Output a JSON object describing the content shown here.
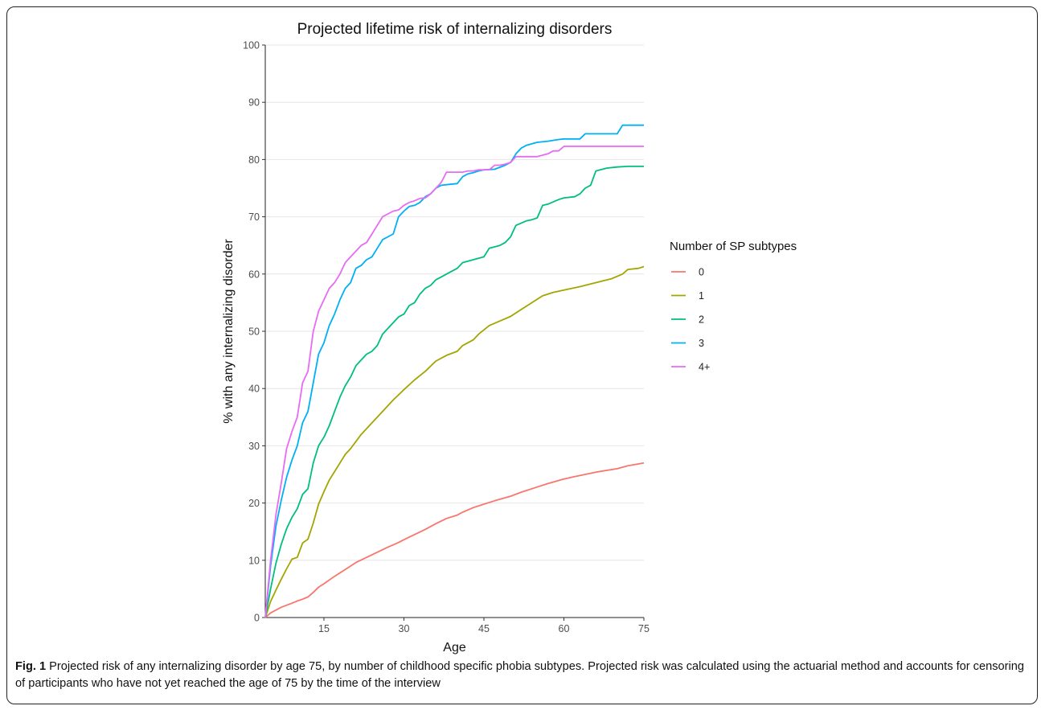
{
  "figure": {
    "caption_label": "Fig. 1",
    "caption_text": "Projected risk of any internalizing disorder by age 75, by number of childhood specific phobia subtypes. Projected risk was calculated using the actuarial method and accounts for censoring of participants who have not yet reached the age of 75 by the time of the interview"
  },
  "chart_data": {
    "type": "line",
    "title": "Projected lifetime risk of internalizing disorders",
    "xlabel": "Age",
    "ylabel": "% with any internalizing disorder",
    "xlim": [
      4,
      75
    ],
    "ylim": [
      0,
      100
    ],
    "x_ticks": [
      15,
      30,
      45,
      60,
      75
    ],
    "y_ticks": [
      0,
      10,
      20,
      30,
      40,
      50,
      60,
      70,
      80,
      90,
      100
    ],
    "grid": true,
    "legend_title": "Number of SP subtypes",
    "legend_position": "right",
    "series": [
      {
        "name": "0",
        "color": "#F8766D",
        "x": [
          4,
          5,
          7,
          9,
          10,
          11,
          12,
          13,
          14,
          15,
          17,
          19,
          21,
          23,
          25,
          27,
          29,
          30,
          32,
          34,
          36,
          38,
          40,
          41,
          43,
          45,
          47,
          50,
          52,
          55,
          57,
          60,
          62,
          64,
          66,
          68,
          70,
          72,
          75
        ],
        "y": [
          0,
          0.8,
          1.8,
          2.5,
          2.9,
          3.2,
          3.6,
          4.4,
          5.3,
          5.9,
          7.2,
          8.4,
          9.6,
          10.5,
          11.4,
          12.3,
          13.1,
          13.6,
          14.5,
          15.4,
          16.4,
          17.3,
          17.9,
          18.4,
          19.2,
          19.8,
          20.4,
          21.2,
          21.9,
          22.8,
          23.4,
          24.2,
          24.6,
          25.0,
          25.4,
          25.7,
          26.0,
          26.5,
          27.0
        ]
      },
      {
        "name": "1",
        "color": "#A3A500",
        "x": [
          4,
          5,
          6,
          7,
          8,
          9,
          10,
          11,
          12,
          13,
          14,
          15,
          16,
          18,
          19,
          20,
          22,
          24,
          26,
          28,
          30,
          32,
          34,
          36,
          38,
          40,
          41,
          43,
          44,
          46,
          48,
          50,
          52,
          54,
          56,
          58,
          60,
          63,
          66,
          69,
          71,
          72,
          74,
          75
        ],
        "y": [
          0,
          2.8,
          4.8,
          6.7,
          8.5,
          10.2,
          10.5,
          13.0,
          13.7,
          16.5,
          19.8,
          22.0,
          24.0,
          27.0,
          28.5,
          29.5,
          32.0,
          34.0,
          36.0,
          38.0,
          39.8,
          41.5,
          43.0,
          44.8,
          45.8,
          46.5,
          47.5,
          48.5,
          49.5,
          51.0,
          51.8,
          52.6,
          53.8,
          55.0,
          56.2,
          56.8,
          57.2,
          57.8,
          58.5,
          59.2,
          60.0,
          60.8,
          61.0,
          61.3
        ]
      },
      {
        "name": "2",
        "color": "#00BF7D",
        "x": [
          4,
          5,
          6,
          7,
          8,
          9,
          10,
          11,
          12,
          13,
          14,
          15,
          16,
          17,
          18,
          19,
          20,
          21,
          22,
          23,
          24,
          25,
          26,
          27,
          28,
          29,
          30,
          31,
          32,
          33,
          34,
          35,
          36,
          37,
          38,
          40,
          41,
          43,
          45,
          46,
          48,
          49,
          50,
          51,
          53,
          54,
          55,
          56,
          57,
          59,
          60,
          62,
          63,
          64,
          65,
          66,
          68,
          70,
          72,
          75
        ],
        "y": [
          0,
          5.0,
          9.5,
          12.8,
          15.5,
          17.5,
          19.0,
          21.5,
          22.5,
          27.0,
          30.0,
          31.5,
          33.5,
          36.0,
          38.5,
          40.5,
          42.0,
          44.0,
          45.0,
          46.0,
          46.5,
          47.5,
          49.5,
          50.5,
          51.5,
          52.5,
          53.0,
          54.5,
          55.0,
          56.5,
          57.5,
          58.0,
          59.0,
          59.5,
          60.0,
          61.0,
          62.0,
          62.5,
          63.0,
          64.5,
          65.0,
          65.5,
          66.5,
          68.5,
          69.3,
          69.5,
          69.8,
          72.0,
          72.2,
          73.0,
          73.3,
          73.5,
          74.0,
          75.0,
          75.5,
          78.0,
          78.5,
          78.7,
          78.8,
          78.8
        ]
      },
      {
        "name": "3",
        "color": "#00B0F6",
        "x": [
          4,
          5,
          6,
          7,
          8,
          9,
          10,
          11,
          12,
          13,
          14,
          15,
          16,
          17,
          18,
          19,
          20,
          21,
          22,
          23,
          24,
          25,
          26,
          27,
          28,
          29,
          30,
          31,
          32,
          33,
          34,
          35,
          36,
          37,
          38,
          40,
          41,
          42,
          43,
          44,
          45,
          47,
          49,
          50,
          51,
          52,
          53,
          55,
          57,
          59,
          60,
          63,
          64,
          66,
          68,
          70,
          71,
          72,
          75
        ],
        "y": [
          0,
          9.0,
          16.0,
          20.5,
          24.5,
          27.5,
          30.0,
          34.0,
          36.0,
          41.0,
          46.0,
          48.0,
          51.0,
          53.0,
          55.5,
          57.5,
          58.5,
          61.0,
          61.5,
          62.5,
          63.0,
          64.5,
          66.0,
          66.5,
          67.0,
          70.0,
          71.0,
          71.8,
          72.0,
          72.5,
          73.5,
          74.0,
          75.0,
          75.5,
          75.6,
          75.8,
          77.0,
          77.5,
          77.7,
          78.0,
          78.2,
          78.3,
          79.0,
          79.5,
          81.0,
          82.0,
          82.5,
          83.0,
          83.2,
          83.5,
          83.6,
          83.6,
          84.5,
          84.5,
          84.5,
          84.5,
          86.0,
          86.0,
          86.0
        ]
      },
      {
        "name": "4+",
        "color": "#E76BF3",
        "x": [
          4,
          5,
          6,
          7,
          8,
          9,
          10,
          11,
          12,
          13,
          14,
          15,
          16,
          17,
          18,
          19,
          20,
          21,
          22,
          23,
          24,
          25,
          26,
          27,
          28,
          29,
          30,
          31,
          32,
          33,
          34,
          35,
          36,
          37,
          38,
          40,
          41,
          42,
          43,
          44,
          45,
          46,
          47,
          48,
          49,
          50,
          51,
          52,
          55,
          57,
          58,
          59,
          60,
          61,
          65,
          70,
          75
        ],
        "y": [
          0,
          10.0,
          18.0,
          23.5,
          29.5,
          32.5,
          35.0,
          41.0,
          43.0,
          50.0,
          53.5,
          55.5,
          57.5,
          58.5,
          60.0,
          62.0,
          63.0,
          64.0,
          65.0,
          65.5,
          67.0,
          68.5,
          70.0,
          70.5,
          71.0,
          71.2,
          72.0,
          72.5,
          72.8,
          73.2,
          73.3,
          74.0,
          75.0,
          76.0,
          77.8,
          77.8,
          77.8,
          78.0,
          78.0,
          78.2,
          78.2,
          78.2,
          79.0,
          79.0,
          79.2,
          79.5,
          80.5,
          80.5,
          80.5,
          81.0,
          81.5,
          81.5,
          82.3,
          82.3,
          82.3,
          82.3,
          82.3
        ]
      }
    ]
  }
}
